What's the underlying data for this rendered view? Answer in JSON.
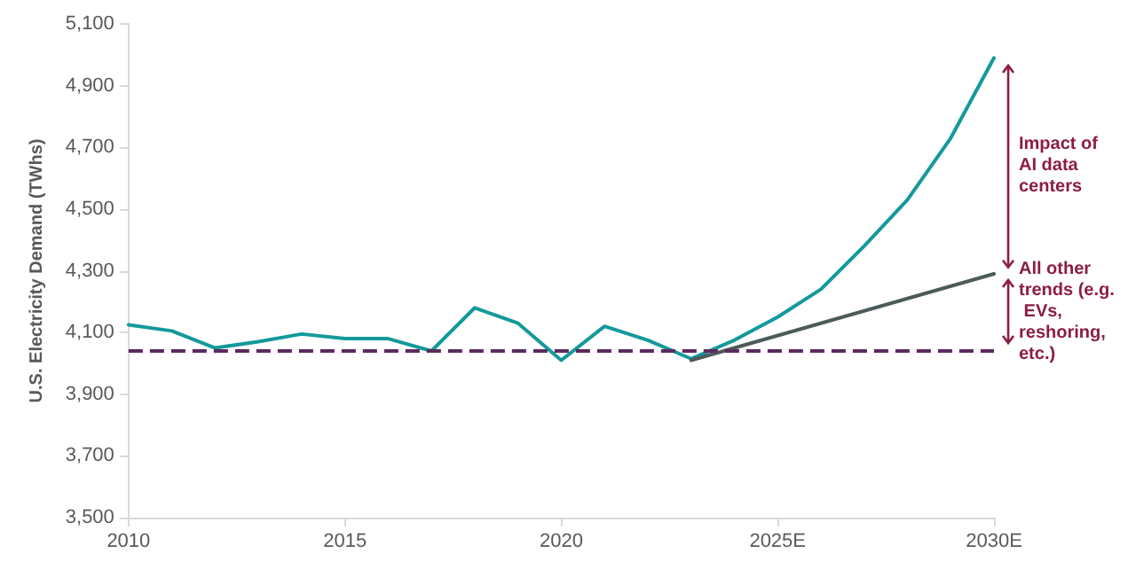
{
  "chart_data": {
    "type": "line",
    "ylabel": "U.S. Electricity Demand (TWhs)",
    "xlim": [
      2010,
      2030
    ],
    "xticks": [
      {
        "value": 2010,
        "label": "2010"
      },
      {
        "value": 2015,
        "label": "2015"
      },
      {
        "value": 2020,
        "label": "2020"
      },
      {
        "value": 2025,
        "label": "2025E"
      },
      {
        "value": 2030,
        "label": "2030E"
      }
    ],
    "ylim": [
      3500,
      5100
    ],
    "yticks": [
      {
        "value": 3500,
        "label": "3,500"
      },
      {
        "value": 3700,
        "label": "3,700"
      },
      {
        "value": 3900,
        "label": "3,900"
      },
      {
        "value": 4100,
        "label": "4,100"
      },
      {
        "value": 4300,
        "label": "4,300"
      },
      {
        "value": 4500,
        "label": "4,500"
      },
      {
        "value": 4700,
        "label": "4,700"
      },
      {
        "value": 4900,
        "label": "4,900"
      },
      {
        "value": 5100,
        "label": "5,100"
      }
    ],
    "grid": false,
    "marker": "none",
    "line_style": "solid",
    "series": [
      {
        "color": "#13999b",
        "x": [
          2010,
          2011,
          2012,
          2013,
          2014,
          2015,
          2016,
          2017,
          2018,
          2019,
          2020,
          2021,
          2022,
          2023,
          2024,
          2025,
          2026,
          2027,
          2028,
          2029,
          2030
        ],
        "values": [
          4125,
          4105,
          4050,
          4070,
          4095,
          4080,
          4080,
          4040,
          4180,
          4130,
          4010,
          4120,
          4075,
          4015,
          4075,
          4150,
          4240,
          4380,
          4530,
          4730,
          4990
        ]
      },
      {
        "color": "#4d5a5a",
        "x": [
          2023,
          2030
        ],
        "values": [
          4010,
          4290
        ]
      }
    ],
    "ref_lines": [
      {
        "axis": "y",
        "value": 4040,
        "color": "#5b2a5e",
        "line_style": "dashed"
      }
    ],
    "annotations": [
      "Impact of AI data centers",
      "All other trends (e.g. EVs, reshoring, etc.)"
    ]
  }
}
